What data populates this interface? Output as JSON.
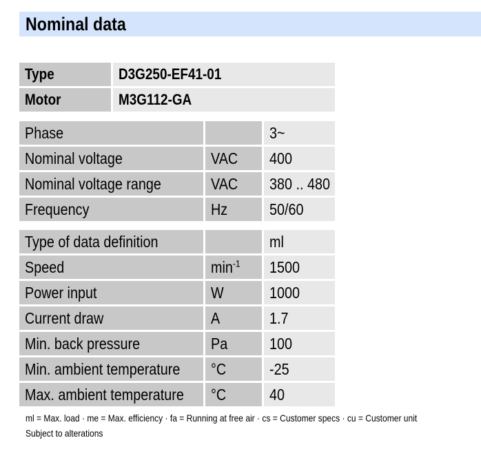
{
  "title": "Nominal data",
  "ident": [
    {
      "label": "Type",
      "value": "D3G250-EF41-01"
    },
    {
      "label": "Motor",
      "value": "M3G112-GA"
    }
  ],
  "group1": [
    {
      "label": "Phase",
      "unit": "",
      "value": "3~"
    },
    {
      "label": "Nominal voltage",
      "unit": "VAC",
      "value": "400"
    },
    {
      "label": "Nominal voltage range",
      "unit": "VAC",
      "value": "380 .. 480"
    },
    {
      "label": "Frequency",
      "unit": "Hz",
      "value": "50/60"
    }
  ],
  "group2": [
    {
      "label": "Type of data definition",
      "unit": "",
      "value": "ml"
    },
    {
      "label": "Speed",
      "unit": "min",
      "unit_sup": "-1",
      "value": "1500"
    },
    {
      "label": "Power input",
      "unit": "W",
      "value": "1000"
    },
    {
      "label": "Current draw",
      "unit": "A",
      "value": "1.7"
    },
    {
      "label": "Min. back pressure",
      "unit": "Pa",
      "value": "100"
    },
    {
      "label": "Min. ambient temperature",
      "unit": "°C",
      "value": "-25"
    },
    {
      "label": "Max. ambient temperature",
      "unit": "°C",
      "value": "40"
    }
  ],
  "footnote": "ml = Max. load · me = Max. efficiency · fa = Running at free air · cs = Customer specs · cu = Customer unit",
  "disclaimer": "Subject to alterations"
}
